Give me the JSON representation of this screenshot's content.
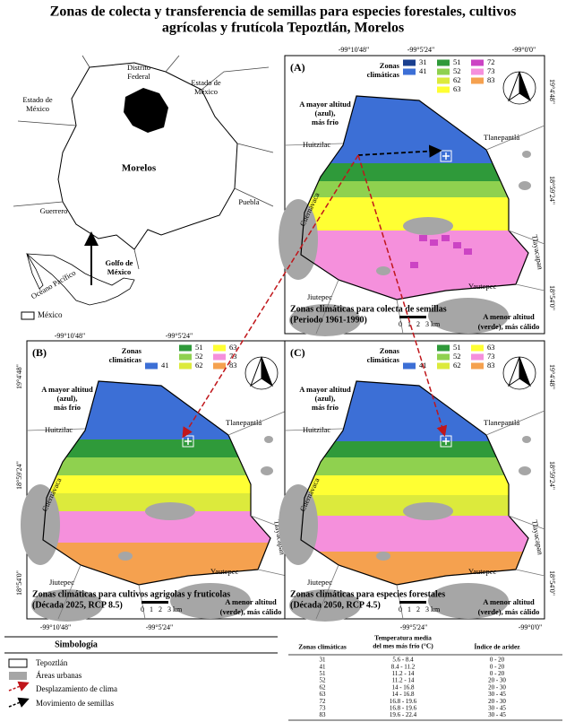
{
  "title": [
    "Zonas de colecta y  transferencia de semillas para especies forestales, cultivos",
    "agrícolas y frutícola Tepoztlán, Morelos"
  ],
  "locator": {
    "labels": [
      [
        "Distrito",
        "Federal"
      ],
      [
        "Estado de",
        "México"
      ],
      [
        "Estado de",
        "México"
      ],
      [
        "Morelos"
      ],
      [
        "Guerrero"
      ],
      [
        "Puebla"
      ],
      [
        "Golfo de",
        "México"
      ],
      [
        "Océano Pacífico"
      ]
    ],
    "inset_label": "México"
  },
  "coordinates": {
    "top": [
      "-99°10'48\"",
      "-99°5'24\"",
      "-99°0'0\""
    ],
    "middle": [
      "-99°10'48\"",
      "-99°5'24\""
    ],
    "bottom": [
      "-99°10'48\"",
      "-99°5'24\"",
      "-99°5'24\"",
      "-99°0'0\""
    ],
    "lat": [
      "19°4'48\"",
      "18°59'24\"",
      "18°54'0\""
    ]
  },
  "places": [
    "Huitzilac",
    "Tlanepantlá",
    "Tlayacapan",
    "Cuernavaca",
    "Jiutepec",
    "Yautepec"
  ],
  "legend_title": [
    "Zonas",
    "climáticas"
  ],
  "note_high": [
    "A mayor altitud",
    "(azul),",
    "más frío"
  ],
  "note_low": [
    "A menor altitud",
    "(verde), más cálido"
  ],
  "scale": [
    "0",
    "1",
    "2",
    "3 km"
  ],
  "panels": [
    {
      "letter": "(A)",
      "legend": [
        {
          "zone": "31",
          "color": "#1a3f8f"
        },
        {
          "zone": "41",
          "color": "#3c6fd6"
        },
        {
          "zone": "51",
          "color": "#2f9a3a"
        },
        {
          "zone": "52",
          "color": "#8fd14f"
        },
        {
          "zone": "62",
          "color": "#dcea3c"
        },
        {
          "zone": "63",
          "color": "#ffff33"
        },
        {
          "zone": "72",
          "color": "#cc44c4"
        },
        {
          "zone": "73",
          "color": "#f590dc"
        },
        {
          "zone": "83",
          "color": "#f5a14f"
        }
      ],
      "caption": [
        "Zonas climáticas para colecta de semillas",
        "(Periodo 1961-1990)"
      ]
    },
    {
      "letter": "(B)",
      "legend": [
        {
          "zone": "41",
          "color": "#3c6fd6"
        },
        {
          "zone": "51",
          "color": "#2f9a3a"
        },
        {
          "zone": "52",
          "color": "#8fd14f"
        },
        {
          "zone": "62",
          "color": "#dcea3c"
        },
        {
          "zone": "63",
          "color": "#ffff33"
        },
        {
          "zone": "73",
          "color": "#f590dc"
        },
        {
          "zone": "83",
          "color": "#f5a14f"
        }
      ],
      "caption": [
        "Zonas climáticas para cultivos agrigolas y fruticolas",
        "(Década 2025, RCP 8.5)"
      ]
    },
    {
      "letter": "(C)",
      "legend": [
        {
          "zone": "41",
          "color": "#3c6fd6"
        },
        {
          "zone": "51",
          "color": "#2f9a3a"
        },
        {
          "zone": "52",
          "color": "#8fd14f"
        },
        {
          "zone": "62",
          "color": "#dcea3c"
        },
        {
          "zone": "63",
          "color": "#ffff33"
        },
        {
          "zone": "73",
          "color": "#f590dc"
        },
        {
          "zone": "83",
          "color": "#f5a14f"
        }
      ],
      "caption": [
        "Zonas climáticas para especies forestales",
        "(Década 2050, RCP 4.5)"
      ]
    }
  ],
  "symbology": {
    "title": "Simbología",
    "items": [
      "Tepoztlán",
      "Áreas urbanas",
      "Desplazamiento de clima",
      "Movimiento de semillas"
    ]
  },
  "table": {
    "headers": [
      [
        "Zonas climáticas"
      ],
      [
        "Temperatura media",
        "del mes más frío (°C)"
      ],
      [
        "Índice de aridez"
      ]
    ],
    "rows": [
      [
        "31",
        "5.6 - 8.4",
        "0 - 20"
      ],
      [
        "41",
        "8.4 - 11.2",
        "0 - 20"
      ],
      [
        "51",
        "11.2 - 14",
        "0 - 20"
      ],
      [
        "52",
        "11.2 - 14",
        "20 - 30"
      ],
      [
        "62",
        "14 - 16.8",
        "20 - 30"
      ],
      [
        "63",
        "14 - 16.8",
        "30 - 45"
      ],
      [
        "72",
        "16.8 - 19.6",
        "20 - 30"
      ],
      [
        "73",
        "16.8 - 19.6",
        "30 - 45"
      ],
      [
        "83",
        "19.6 - 22.4",
        "30 - 45"
      ]
    ]
  }
}
